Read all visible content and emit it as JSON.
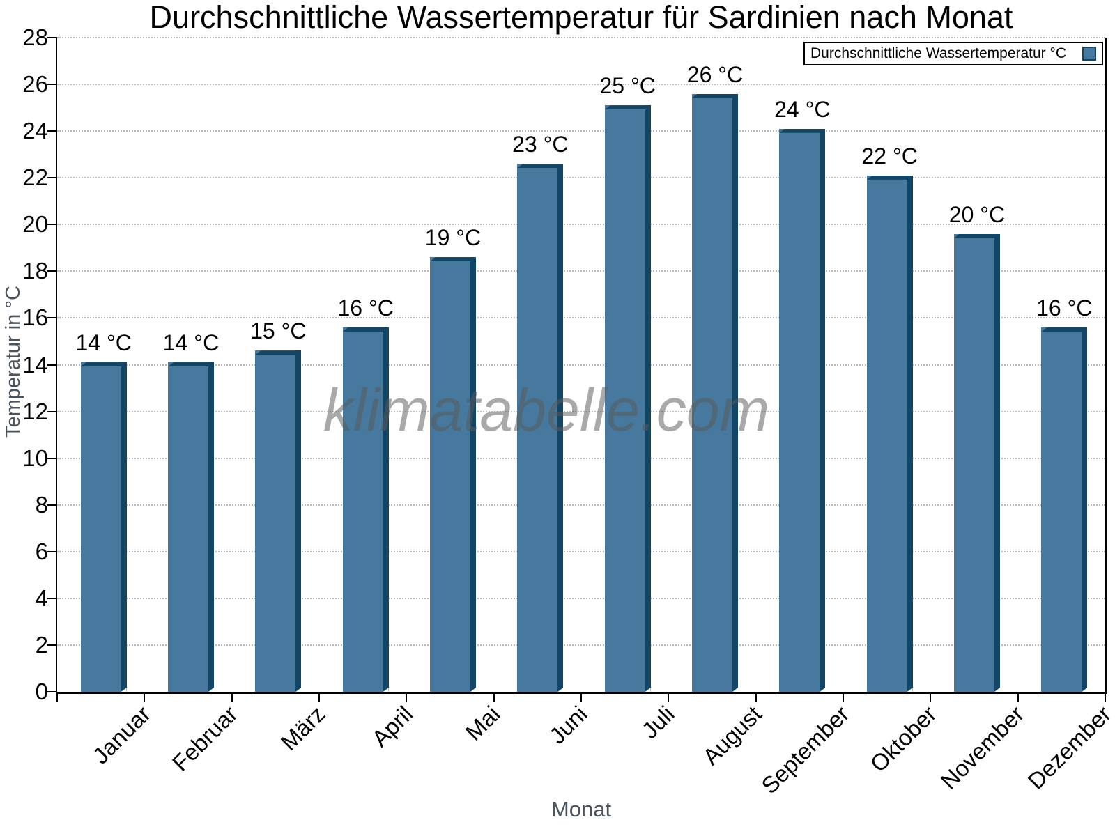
{
  "title": "Durchschnittliche Wassertemperatur für Sardinien nach Monat",
  "watermark": "klimatabelle.com",
  "legend": {
    "label": "Durchschnittliche Wassertemperatur °C"
  },
  "chart_data": {
    "type": "bar",
    "title": "Durchschnittliche Wassertemperatur für Sardinien nach Monat",
    "xlabel": "Monat",
    "ylabel": "Temperatur in °C",
    "categories": [
      "Januar",
      "Februar",
      "März",
      "April",
      "Mai",
      "Juni",
      "Juli",
      "August",
      "September",
      "Oktober",
      "November",
      "Dezember"
    ],
    "values": [
      14.1,
      14.1,
      14.6,
      15.6,
      18.6,
      22.6,
      25.1,
      25.6,
      24.1,
      22.1,
      19.6,
      15.6
    ],
    "bar_labels": [
      "14 °C",
      "14 °C",
      "15 °C",
      "16 °C",
      "19 °C",
      "23 °C",
      "25 °C",
      "26 °C",
      "24 °C",
      "22 °C",
      "20 °C",
      "16 °C"
    ],
    "ylim": [
      0,
      28
    ],
    "ytick_step": 2,
    "grid": "horizontal-dotted",
    "legend_position": "top-right",
    "colors": {
      "bar_fill": "#46799D",
      "bar_edge": "#134665",
      "grid": "#b9b9b9",
      "axis_title": "#4a545e",
      "watermark": "#8f8f8f"
    }
  }
}
